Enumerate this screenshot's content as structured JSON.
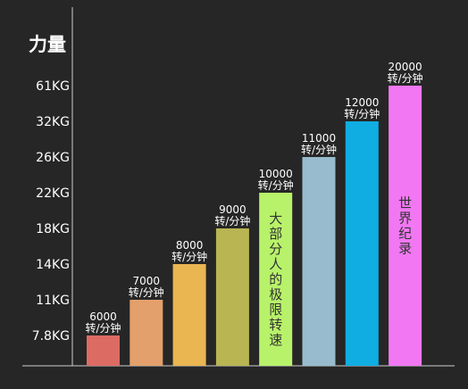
{
  "chart_data": {
    "type": "bar",
    "title": "力量",
    "xlabel": "",
    "ylabel": "",
    "categories": [
      "6000\n转/分钟",
      "7000\n转/分钟",
      "8000\n转/分钟",
      "9000\n转/分钟",
      "10000\n转/分钟",
      "11000\n转/分钟",
      "12000\n转/分钟",
      "20000\n转/分钟"
    ],
    "x": [
      6000,
      7000,
      8000,
      9000,
      10000,
      11000,
      12000,
      20000
    ],
    "x_unit": "转/分钟",
    "y_tick_labels": [
      "7.8KG",
      "11KG",
      "14KG",
      "18KG",
      "22KG",
      "26KG",
      "32KG",
      "61KG"
    ],
    "values": [
      7.8,
      11,
      14,
      18,
      22,
      26,
      32,
      61
    ],
    "y_unit": "KG",
    "bar_colors": [
      "#dc6b63",
      "#e3a06c",
      "#eab652",
      "#b9b553",
      "#b8f26a",
      "#98bccd",
      "#10ade2",
      "#f178f2"
    ],
    "annotations": [
      {
        "bar_index": 4,
        "text": "大部分人的极限转速"
      },
      {
        "bar_index": 7,
        "text": "世界纪录"
      }
    ],
    "grid": false,
    "legend": "none",
    "background_color": "#262626"
  }
}
